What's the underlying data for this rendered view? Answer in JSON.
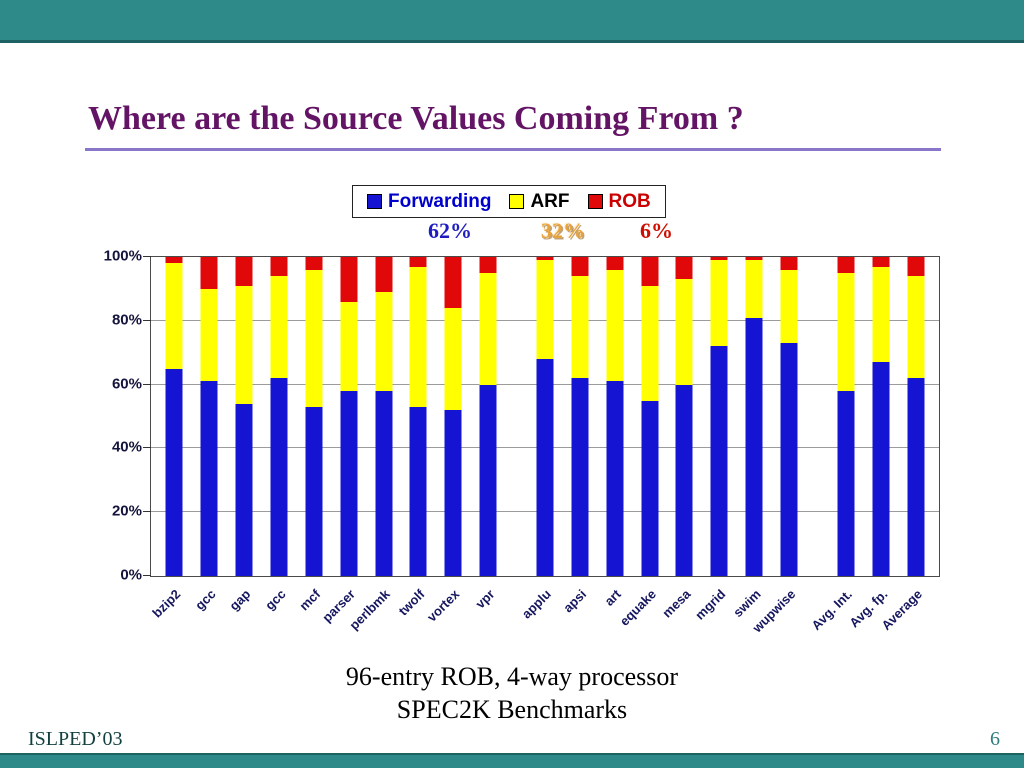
{
  "slide": {
    "title": "Where are the Source Values Coming From ?",
    "caption_line1": "96-entry ROB, 4-way processor",
    "caption_line2": "SPEC2K Benchmarks",
    "footer_left": "ISLPED’03",
    "page_number": "6"
  },
  "colors": {
    "teal_band": "#2e8989",
    "teal_band_edge": "#1d6363",
    "title": "#641464",
    "title_rule": "#8976c9"
  },
  "chart_data": {
    "type": "bar",
    "stacked": true,
    "title": "",
    "xlabel": "",
    "ylabel": "",
    "ylim": [
      0,
      100
    ],
    "yticks": [
      0,
      20,
      40,
      60,
      80,
      100
    ],
    "ytick_suffix": "%",
    "grid": true,
    "legend_position": "top",
    "categories": [
      "bzip2",
      "gcc",
      "gap",
      "gcc",
      "mcf",
      "parser",
      "perlbmk",
      "twolf",
      "vortex",
      "vpr",
      "applu",
      "apsi",
      "art",
      "equake",
      "mesa",
      "mgrid",
      "swim",
      "wupwise",
      "Avg. Int.",
      "Avg. fp.",
      "Average"
    ],
    "group_breaks_after_index": [
      9,
      17
    ],
    "series": [
      {
        "name": "Forwarding",
        "color": "#1414d2",
        "label_color": "#0000cc",
        "values": [
          65,
          61,
          54,
          62,
          53,
          58,
          58,
          53,
          52,
          60,
          68,
          62,
          61,
          55,
          60,
          72,
          81,
          73,
          58,
          67,
          62
        ]
      },
      {
        "name": "ARF",
        "color": "#ffff00",
        "label_color": "#000000",
        "values": [
          33,
          29,
          37,
          32,
          43,
          28,
          31,
          44,
          32,
          35,
          31,
          32,
          35,
          36,
          33,
          27,
          18,
          23,
          37,
          30,
          32
        ]
      },
      {
        "name": "ROB",
        "color": "#e00808",
        "label_color": "#cc0000",
        "values": [
          2,
          10,
          9,
          6,
          4,
          14,
          11,
          3,
          16,
          5,
          1,
          6,
          4,
          9,
          7,
          1,
          1,
          4,
          5,
          3,
          6
        ]
      }
    ],
    "annotations": [
      {
        "text": "62%",
        "color": "#1d1dc0"
      },
      {
        "text": "32%",
        "color": "#e8a33c"
      },
      {
        "text": "6%",
        "color": "#cf0d00"
      }
    ]
  }
}
